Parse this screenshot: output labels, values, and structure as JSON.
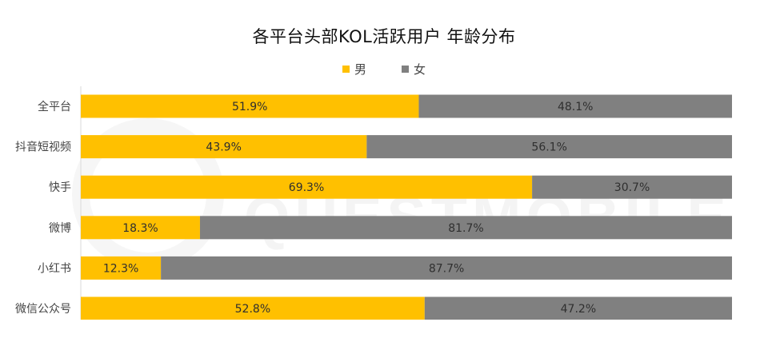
{
  "chart_data": {
    "type": "bar",
    "orientation": "horizontal",
    "stacked": true,
    "title": "各平台头部KOL活跃用户 年龄分布",
    "categories": [
      "全平台",
      "抖音短视频",
      "快手",
      "微博",
      "小红书",
      "微信公众号"
    ],
    "series": [
      {
        "name": "男",
        "color": "#FFC000",
        "values": [
          51.9,
          43.9,
          69.3,
          18.3,
          12.3,
          52.8
        ],
        "labels": [
          "51.9%",
          "43.9%",
          "69.3%",
          "18.3%",
          "12.3%",
          "52.8%"
        ]
      },
      {
        "name": "女",
        "color": "#808080",
        "values": [
          48.1,
          56.1,
          30.7,
          81.7,
          87.7,
          47.2
        ],
        "labels": [
          "48.1%",
          "56.1%",
          "30.7%",
          "81.7%",
          "87.7%",
          "47.2%"
        ]
      }
    ],
    "xlim": [
      0,
      100
    ],
    "legend_position": "top-center",
    "grid": false
  },
  "watermark": "QUESTMOBILE"
}
